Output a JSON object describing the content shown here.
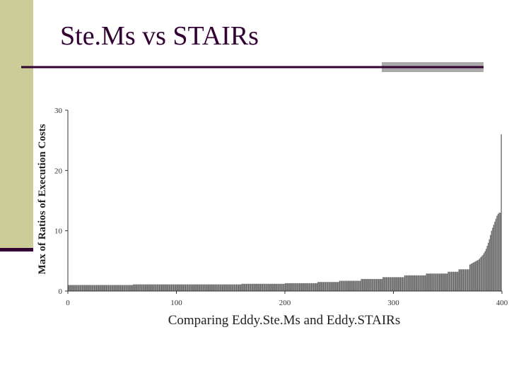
{
  "title": "Ste.Ms vs STAIRs",
  "chart_data": {
    "type": "bar",
    "xlabel": "Comparing Eddy.Ste.Ms and Eddy.STAIRs",
    "ylabel": "Max of Ratios of Execution Costs",
    "xlim": [
      0,
      400
    ],
    "ylim": [
      0,
      30
    ],
    "xticks": [
      0,
      100,
      200,
      300,
      400
    ],
    "yticks": [
      0,
      10,
      20,
      30
    ],
    "color": "#666666",
    "x": [
      1,
      2,
      3,
      4,
      5,
      6,
      7,
      8,
      9,
      10,
      11,
      12,
      13,
      14,
      15,
      16,
      17,
      18,
      19,
      20,
      21,
      22,
      23,
      24,
      25,
      26,
      27,
      28,
      29,
      30,
      31,
      32,
      33,
      34,
      35,
      36,
      37,
      38,
      39,
      40,
      41,
      42,
      43,
      44,
      45,
      46,
      47,
      48,
      49,
      50,
      51,
      52,
      53,
      54,
      55,
      56,
      57,
      58,
      59,
      60,
      61,
      62,
      63,
      64,
      65,
      66,
      67,
      68,
      69,
      70,
      71,
      72,
      73,
      74,
      75,
      76,
      77,
      78,
      79,
      80,
      81,
      82,
      83,
      84,
      85,
      86,
      87,
      88,
      89,
      90,
      91,
      92,
      93,
      94,
      95,
      96,
      97,
      98,
      99,
      100,
      101,
      102,
      103,
      104,
      105,
      106,
      107,
      108,
      109,
      110,
      111,
      112,
      113,
      114,
      115,
      116,
      117,
      118,
      119,
      120,
      121,
      122,
      123,
      124,
      125,
      126,
      127,
      128,
      129,
      130,
      131,
      132,
      133,
      134,
      135,
      136,
      137,
      138,
      139,
      140,
      141,
      142,
      143,
      144,
      145,
      146,
      147,
      148,
      149,
      150,
      151,
      152,
      153,
      154,
      155,
      156,
      157,
      158,
      159,
      160,
      161,
      162,
      163,
      164,
      165,
      166,
      167,
      168,
      169,
      170,
      171,
      172,
      173,
      174,
      175,
      176,
      177,
      178,
      179,
      180,
      181,
      182,
      183,
      184,
      185,
      186,
      187,
      188,
      189,
      190,
      191,
      192,
      193,
      194,
      195,
      196,
      197,
      198,
      199,
      200,
      201,
      202,
      203,
      204,
      205,
      206,
      207,
      208,
      209,
      210,
      211,
      212,
      213,
      214,
      215,
      216,
      217,
      218,
      219,
      220,
      221,
      222,
      223,
      224,
      225,
      226,
      227,
      228,
      229,
      230,
      231,
      232,
      233,
      234,
      235,
      236,
      237,
      238,
      239,
      240,
      241,
      242,
      243,
      244,
      245,
      246,
      247,
      248,
      249,
      250,
      251,
      252,
      253,
      254,
      255,
      256,
      257,
      258,
      259,
      260,
      261,
      262,
      263,
      264,
      265,
      266,
      267,
      268,
      269,
      270,
      271,
      272,
      273,
      274,
      275,
      276,
      277,
      278,
      279,
      280,
      281,
      282,
      283,
      284,
      285,
      286,
      287,
      288,
      289,
      290,
      291,
      292,
      293,
      294,
      295,
      296,
      297,
      298,
      299,
      300,
      301,
      302,
      303,
      304,
      305,
      306,
      307,
      308,
      309,
      310,
      311,
      312,
      313,
      314,
      315,
      316,
      317,
      318,
      319,
      320,
      321,
      322,
      323,
      324,
      325,
      326,
      327,
      328,
      329,
      330,
      331,
      332,
      333,
      334,
      335,
      336,
      337,
      338,
      339,
      340,
      341,
      342,
      343,
      344,
      345,
      346,
      347,
      348,
      349,
      350,
      351,
      352,
      353,
      354,
      355,
      356,
      357,
      358,
      359,
      360,
      361,
      362,
      363,
      364,
      365,
      366,
      367,
      368,
      369,
      370,
      371,
      372,
      373,
      374,
      375,
      376,
      377,
      378,
      379,
      380,
      381,
      382,
      383,
      384,
      385,
      386,
      387,
      388,
      389,
      390,
      391,
      392,
      393,
      394,
      395,
      396,
      397,
      398,
      399,
      400
    ],
    "values": [
      1.0,
      1.0,
      1.0,
      1.0,
      1.0,
      1.0,
      1.0,
      1.0,
      1.0,
      1.0,
      1.0,
      1.0,
      1.0,
      1.0,
      1.0,
      1.0,
      1.0,
      1.0,
      1.0,
      1.0,
      1.0,
      1.0,
      1.0,
      1.0,
      1.0,
      1.0,
      1.0,
      1.0,
      1.0,
      1.0,
      1.0,
      1.0,
      1.0,
      1.0,
      1.0,
      1.0,
      1.0,
      1.0,
      1.0,
      1.0,
      1.0,
      1.0,
      1.0,
      1.0,
      1.0,
      1.0,
      1.0,
      1.0,
      1.0,
      1.0,
      1.0,
      1.0,
      1.0,
      1.0,
      1.0,
      1.0,
      1.0,
      1.0,
      1.0,
      1.0,
      1.1,
      1.1,
      1.1,
      1.1,
      1.1,
      1.1,
      1.1,
      1.1,
      1.1,
      1.1,
      1.1,
      1.1,
      1.1,
      1.1,
      1.1,
      1.1,
      1.1,
      1.1,
      1.1,
      1.1,
      1.1,
      1.1,
      1.1,
      1.1,
      1.1,
      1.1,
      1.1,
      1.1,
      1.1,
      1.1,
      1.1,
      1.1,
      1.1,
      1.1,
      1.1,
      1.1,
      1.1,
      1.1,
      1.1,
      1.1,
      1.1,
      1.1,
      1.1,
      1.1,
      1.1,
      1.1,
      1.1,
      1.1,
      1.1,
      1.1,
      1.1,
      1.1,
      1.1,
      1.1,
      1.1,
      1.1,
      1.1,
      1.1,
      1.1,
      1.1,
      1.1,
      1.1,
      1.1,
      1.1,
      1.1,
      1.1,
      1.1,
      1.1,
      1.1,
      1.1,
      1.1,
      1.1,
      1.1,
      1.1,
      1.1,
      1.1,
      1.1,
      1.1,
      1.1,
      1.1,
      1.1,
      1.1,
      1.1,
      1.1,
      1.1,
      1.1,
      1.1,
      1.1,
      1.1,
      1.1,
      1.1,
      1.1,
      1.1,
      1.1,
      1.1,
      1.1,
      1.1,
      1.1,
      1.1,
      1.1,
      1.2,
      1.2,
      1.2,
      1.2,
      1.2,
      1.2,
      1.2,
      1.2,
      1.2,
      1.2,
      1.2,
      1.2,
      1.2,
      1.2,
      1.2,
      1.2,
      1.2,
      1.2,
      1.2,
      1.2,
      1.2,
      1.2,
      1.2,
      1.2,
      1.2,
      1.2,
      1.2,
      1.2,
      1.2,
      1.2,
      1.2,
      1.2,
      1.2,
      1.2,
      1.2,
      1.2,
      1.2,
      1.2,
      1.2,
      1.2,
      1.3,
      1.3,
      1.3,
      1.3,
      1.3,
      1.3,
      1.3,
      1.3,
      1.3,
      1.3,
      1.3,
      1.3,
      1.3,
      1.3,
      1.3,
      1.3,
      1.3,
      1.3,
      1.3,
      1.3,
      1.3,
      1.3,
      1.3,
      1.3,
      1.3,
      1.3,
      1.3,
      1.3,
      1.3,
      1.3,
      1.5,
      1.5,
      1.5,
      1.5,
      1.5,
      1.5,
      1.5,
      1.5,
      1.5,
      1.5,
      1.5,
      1.5,
      1.5,
      1.5,
      1.5,
      1.5,
      1.5,
      1.5,
      1.5,
      1.5,
      1.7,
      1.7,
      1.7,
      1.7,
      1.7,
      1.7,
      1.7,
      1.7,
      1.7,
      1.7,
      1.7,
      1.7,
      1.7,
      1.7,
      1.7,
      1.7,
      1.7,
      1.7,
      1.7,
      1.7,
      2.0,
      2.0,
      2.0,
      2.0,
      2.0,
      2.0,
      2.0,
      2.0,
      2.0,
      2.0,
      2.0,
      2.0,
      2.0,
      2.0,
      2.0,
      2.0,
      2.0,
      2.0,
      2.0,
      2.0,
      2.3,
      2.3,
      2.3,
      2.3,
      2.3,
      2.3,
      2.3,
      2.3,
      2.3,
      2.3,
      2.3,
      2.3,
      2.3,
      2.3,
      2.3,
      2.3,
      2.3,
      2.3,
      2.3,
      2.3,
      2.6,
      2.6,
      2.6,
      2.6,
      2.6,
      2.6,
      2.6,
      2.6,
      2.6,
      2.6,
      2.6,
      2.6,
      2.6,
      2.6,
      2.6,
      2.6,
      2.6,
      2.6,
      2.6,
      2.6,
      2.9,
      2.9,
      2.9,
      2.9,
      2.9,
      2.9,
      2.9,
      2.9,
      2.9,
      2.9,
      2.9,
      2.9,
      2.9,
      2.9,
      2.9,
      2.9,
      2.9,
      2.9,
      2.9,
      2.9,
      3.2,
      3.2,
      3.2,
      3.2,
      3.2,
      3.2,
      3.2,
      3.2,
      3.2,
      3.2,
      3.6,
      3.6,
      3.6,
      3.6,
      3.6,
      3.6,
      3.6,
      3.6,
      3.6,
      3.6,
      4.4,
      4.5,
      4.6,
      4.7,
      4.8,
      4.9,
      5.0,
      5.1,
      5.2,
      5.4,
      5.6,
      5.8,
      6.0,
      6.3,
      6.6,
      7.0,
      7.5,
      8.0,
      8.6,
      9.3,
      10.0,
      10.5,
      11.0,
      11.5,
      12.0,
      12.5,
      12.8,
      13.0,
      13.0,
      26.0
    ]
  }
}
